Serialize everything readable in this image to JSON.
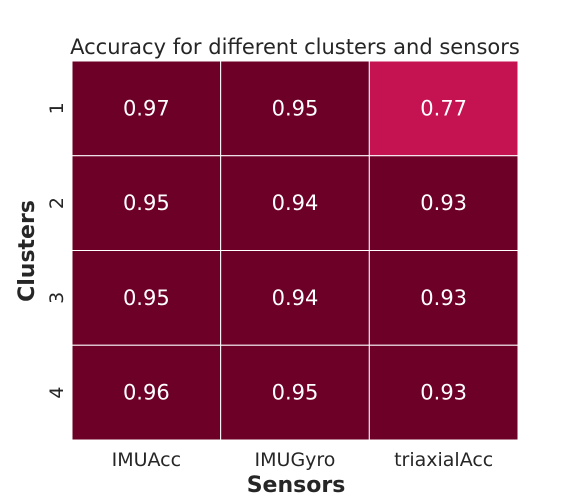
{
  "chart_data": {
    "type": "heatmap",
    "title": "Accuracy for different clusters and sensors",
    "xlabel": "Sensors",
    "ylabel": "Clusters",
    "x_categories": [
      "IMUAcc",
      "IMUGyro",
      "triaxialAcc"
    ],
    "y_categories": [
      "1",
      "2",
      "3",
      "4"
    ],
    "values": [
      [
        0.97,
        0.95,
        0.77
      ],
      [
        0.95,
        0.94,
        0.93
      ],
      [
        0.95,
        0.94,
        0.93
      ],
      [
        0.96,
        0.95,
        0.93
      ]
    ],
    "cell_labels": [
      [
        "0.97",
        "0.95",
        "0.77"
      ],
      [
        "0.95",
        "0.94",
        "0.93"
      ],
      [
        "0.95",
        "0.94",
        "0.93"
      ],
      [
        "0.96",
        "0.95",
        "0.93"
      ]
    ],
    "colorbar": false,
    "grid": false
  },
  "colors": {
    "high": "#6d0027",
    "low": "#c51250",
    "cell_border": "#ffffff",
    "cell_text": "#ffffff",
    "text": "#262626"
  }
}
